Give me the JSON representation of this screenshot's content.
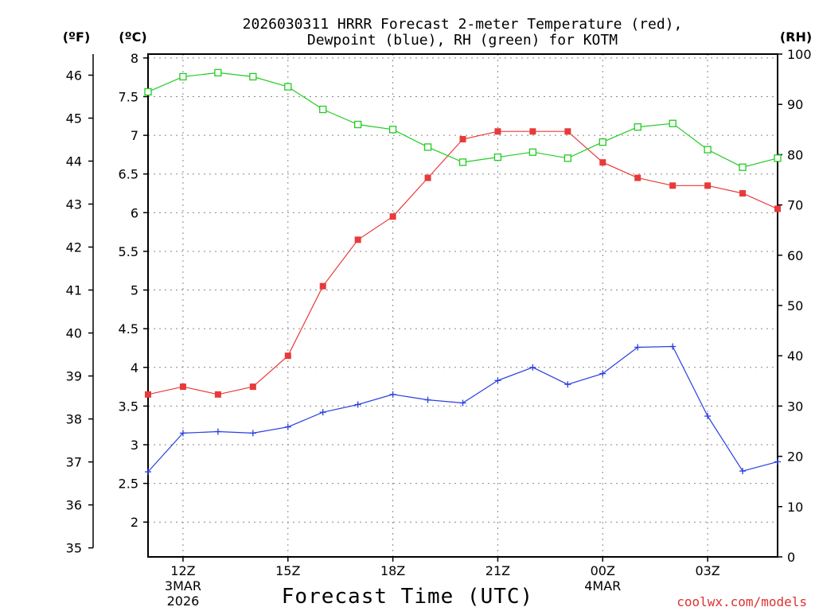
{
  "chart_data": {
    "type": "line",
    "title_line1": "2026030311 HRRR Forecast 2-meter Temperature (red),",
    "title_line2": "Dewpoint (blue), RH (green) for KOTM",
    "xlabel": "Forecast Time (UTC)",
    "credit": "coolwx.com/models",
    "units": {
      "fahrenheit": "(ºF)",
      "celsius": "(ºC)",
      "rh": "(RH)"
    },
    "x_hours": [
      11,
      12,
      13,
      14,
      15,
      16,
      17,
      18,
      19,
      20,
      21,
      22,
      23,
      24,
      25,
      26,
      27,
      28,
      29
    ],
    "xlim": [
      11,
      29
    ],
    "x_ticks": [
      {
        "hour": 12,
        "label": "12Z",
        "sub1": "3MAR",
        "sub2": "2026"
      },
      {
        "hour": 15,
        "label": "15Z",
        "sub1": "",
        "sub2": ""
      },
      {
        "hour": 18,
        "label": "18Z",
        "sub1": "",
        "sub2": ""
      },
      {
        "hour": 21,
        "label": "21Z",
        "sub1": "",
        "sub2": ""
      },
      {
        "hour": 24,
        "label": "00Z",
        "sub1": "4MAR",
        "sub2": ""
      },
      {
        "hour": 27,
        "label": "03Z",
        "sub1": "",
        "sub2": ""
      }
    ],
    "ylim_celsius": [
      1.55,
      8.05
    ],
    "yticks_celsius": [
      "2",
      "2.5",
      "3",
      "3.5",
      "4",
      "4.5",
      "5",
      "5.5",
      "6",
      "6.5",
      "7",
      "7.5",
      "8"
    ],
    "yticks_fahrenheit": [
      "35",
      "36",
      "37",
      "38",
      "39",
      "40",
      "41",
      "42",
      "43",
      "44",
      "45",
      "46"
    ],
    "ylim_rh": [
      0,
      100
    ],
    "yticks_rh": [
      "0",
      "10",
      "20",
      "30",
      "40",
      "50",
      "60",
      "70",
      "80",
      "90",
      "100"
    ],
    "series": [
      {
        "name": "Temperature",
        "color": "#e83a3a",
        "axis": "celsius",
        "marker": "filled-square",
        "values": [
          3.65,
          3.75,
          3.65,
          3.75,
          4.15,
          5.05,
          5.65,
          5.95,
          6.45,
          6.95,
          7.05,
          7.05,
          7.05,
          6.65,
          6.45,
          6.35,
          6.35,
          6.25,
          6.05
        ]
      },
      {
        "name": "Dewpoint",
        "color": "#2a3ee0",
        "axis": "celsius",
        "marker": "plus",
        "values": [
          2.65,
          3.15,
          3.17,
          3.15,
          3.23,
          3.42,
          3.52,
          3.65,
          3.58,
          3.54,
          3.83,
          4.0,
          3.78,
          3.92,
          4.26,
          4.27,
          3.37,
          2.66,
          2.78
        ]
      },
      {
        "name": "RH",
        "color": "#22cc22",
        "axis": "rh",
        "marker": "open-square",
        "values": [
          92.5,
          95.5,
          96.3,
          95.5,
          93.5,
          89,
          86,
          85,
          81.5,
          78.5,
          79.5,
          80.5,
          79.3,
          82.5,
          85.5,
          86.2,
          81,
          77.5,
          79.3
        ]
      }
    ]
  }
}
